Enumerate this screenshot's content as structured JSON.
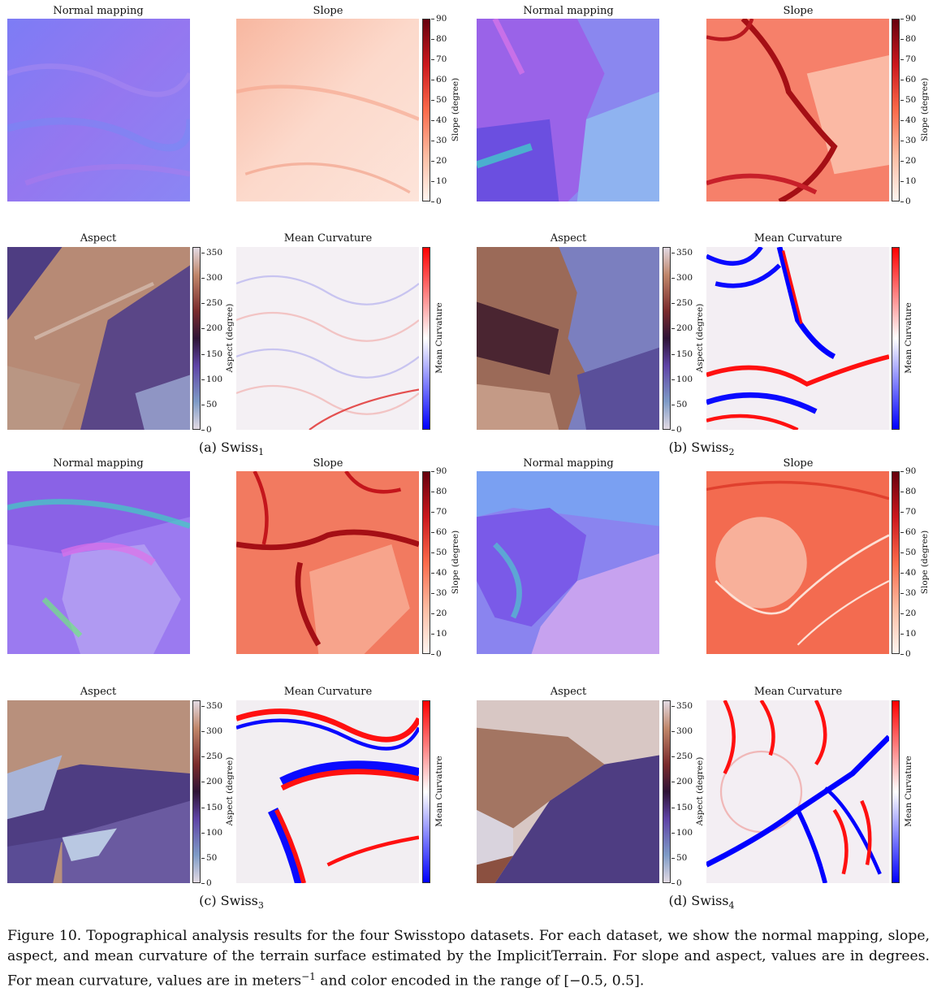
{
  "panel_titles": {
    "normal": "Normal mapping",
    "slope": "Slope",
    "aspect": "Aspect",
    "curvature": "Mean Curvature"
  },
  "colorbars": {
    "slope": {
      "label": "Slope (degree)",
      "ticks": [
        "90",
        "80",
        "70",
        "60",
        "50",
        "40",
        "30",
        "20",
        "10",
        "0"
      ]
    },
    "aspect": {
      "label": "Aspect (degree)",
      "ticks": [
        "350",
        "300",
        "250",
        "200",
        "150",
        "100",
        "50",
        "0"
      ]
    },
    "curvature": {
      "label": "Mean Curvature"
    }
  },
  "subcaptions": {
    "a": {
      "prefix": "(a) Swiss",
      "sub": "1"
    },
    "b": {
      "prefix": "(b) Swiss",
      "sub": "2"
    },
    "c": {
      "prefix": "(c) Swiss",
      "sub": "3"
    },
    "d": {
      "prefix": "(d) Swiss",
      "sub": "4"
    }
  },
  "caption": {
    "part1": "Figure 10. Topographical analysis results for the four Swisstopo datasets. For each dataset, we show the normal mapping, slope, aspect, and mean curvature of the terrain surface estimated by the ImplicitTerrain. For slope and aspect, values are in degrees. For mean curvature, values are in meters",
    "exponent": "−1",
    "part2": " and color encoded in the range of [−0.5, 0.5]."
  },
  "colors": {
    "normal_base": "#8f74f2",
    "slope_light": "#fbd2c2",
    "slope_dark": "#e8503a",
    "aspect_brown": "#b98a74",
    "aspect_purple": "#4f3f86",
    "curv_red": "#ff0000",
    "curv_blue": "#0000ff"
  }
}
